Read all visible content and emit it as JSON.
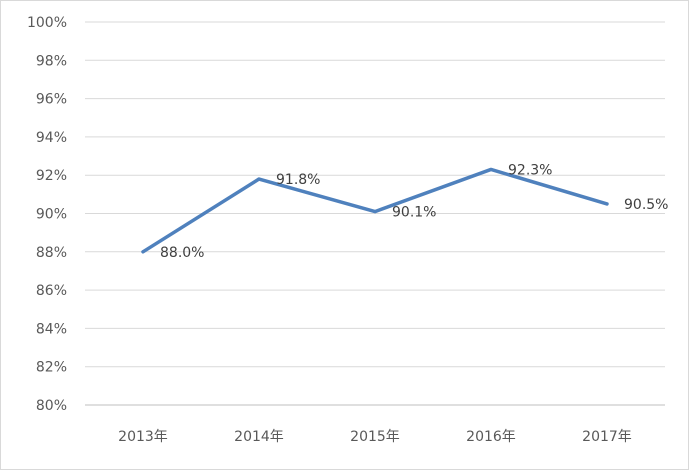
{
  "chart_data": {
    "type": "line",
    "title": "",
    "xlabel": "",
    "ylabel": "",
    "categories": [
      "2013年",
      "2014年",
      "2015年",
      "2016年",
      "2017年"
    ],
    "series": [
      {
        "values": [
          88.0,
          91.8,
          90.1,
          92.3,
          90.5
        ],
        "color": "#4f81bd"
      }
    ],
    "data_labels": [
      "88.0%",
      "91.8%",
      "90.1%",
      "92.3%",
      "90.5%"
    ],
    "ylim": [
      80,
      100
    ],
    "yticks": [
      "80%",
      "82%",
      "84%",
      "86%",
      "88%",
      "90%",
      "92%",
      "94%",
      "96%",
      "98%",
      "100%"
    ],
    "grid": true,
    "legend": "none"
  }
}
